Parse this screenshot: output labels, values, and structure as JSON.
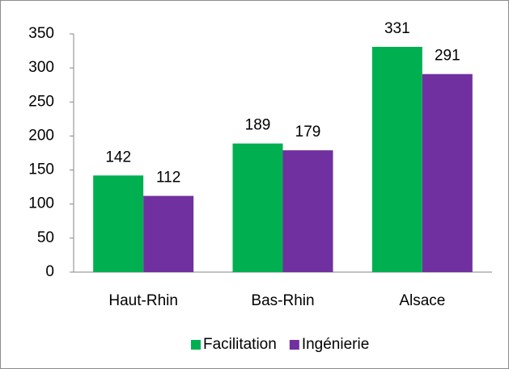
{
  "chart_data": {
    "type": "bar",
    "categories": [
      "Haut-Rhin",
      "Bas-Rhin",
      "Alsace"
    ],
    "series": [
      {
        "name": "Facilitation",
        "color": "#00b050",
        "values": [
          142,
          189,
          331
        ]
      },
      {
        "name": "Ingénierie",
        "color": "#7030a0",
        "values": [
          112,
          179,
          291
        ]
      }
    ],
    "ylim": [
      0,
      350
    ],
    "yticks": [
      0,
      50,
      100,
      150,
      200,
      250,
      300,
      350
    ],
    "grid": false,
    "legend": "bottom",
    "data_labels": true
  }
}
